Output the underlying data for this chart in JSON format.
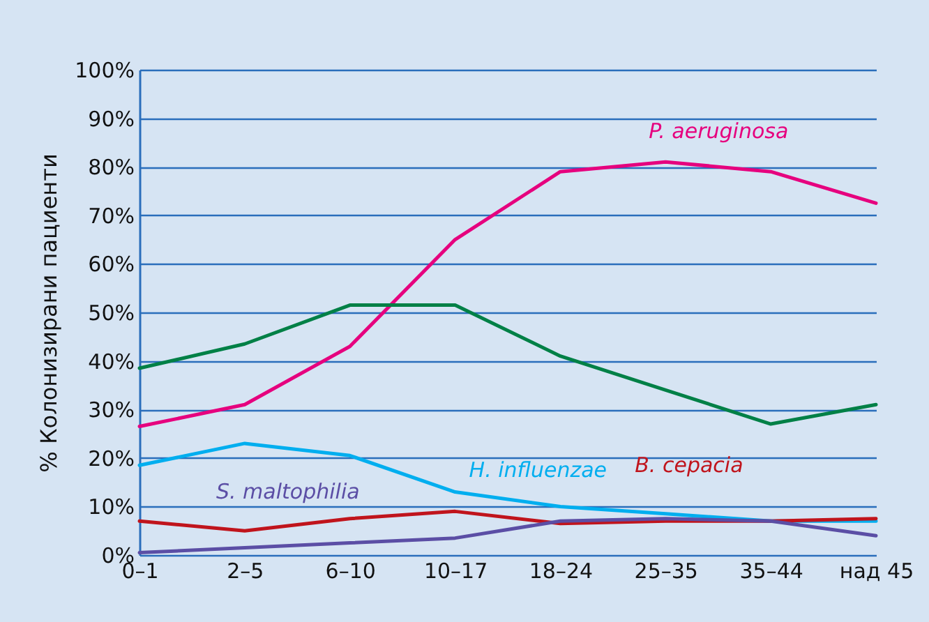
{
  "chart_data": {
    "type": "line",
    "ylabel": "% Колонизирани пациенти",
    "categories": [
      "0–1",
      "2–5",
      "6–10",
      "10–17",
      "18–24",
      "25–35",
      "35–44",
      "над 45"
    ],
    "ylim": [
      0,
      100
    ],
    "yticks": [
      {
        "value": 0,
        "label": "0%"
      },
      {
        "value": 10,
        "label": "10%"
      },
      {
        "value": 20,
        "label": "20%"
      },
      {
        "value": 30,
        "label": "30%"
      },
      {
        "value": 40,
        "label": "40%"
      },
      {
        "value": 50,
        "label": "50%"
      },
      {
        "value": 60,
        "label": "60%"
      },
      {
        "value": 70,
        "label": "70%"
      },
      {
        "value": 80,
        "label": "80%"
      },
      {
        "value": 90,
        "label": "90%"
      },
      {
        "value": 100,
        "label": "100%"
      }
    ],
    "grid": "y",
    "marker": "none",
    "line_style": "solid",
    "series": [
      {
        "name": "P. aeruginosa",
        "color": "#e6007e",
        "values": [
          26.5,
          31,
          43,
          65,
          79,
          81,
          79,
          72.5
        ]
      },
      {
        "color": "#008046",
        "values": [
          38.5,
          43.5,
          51.5,
          51.5,
          41,
          34,
          27,
          31
        ]
      },
      {
        "name": "H. influenzae",
        "color": "#00aeef",
        "values": [
          18.5,
          23,
          20.5,
          13,
          10,
          8.5,
          7,
          7
        ]
      },
      {
        "name": "B. cepacia",
        "color": "#c0141c",
        "values": [
          7,
          5,
          7.5,
          9,
          6.5,
          7,
          7,
          7.5
        ]
      },
      {
        "name": "S. maltophilia",
        "color": "#5b4ea5",
        "values": [
          0.5,
          1.5,
          2.5,
          3.5,
          7,
          7.5,
          7,
          4
        ]
      }
    ]
  }
}
